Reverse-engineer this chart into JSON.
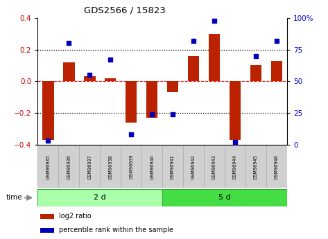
{
  "title": "GDS2566 / 15823",
  "samples": [
    "GSM96935",
    "GSM96936",
    "GSM96937",
    "GSM96938",
    "GSM96939",
    "GSM96940",
    "GSM96941",
    "GSM96942",
    "GSM96943",
    "GSM96944",
    "GSM96945",
    "GSM96946"
  ],
  "log2_ratio": [
    -0.37,
    0.12,
    0.03,
    0.02,
    -0.26,
    -0.23,
    -0.07,
    0.16,
    0.3,
    -0.37,
    0.1,
    0.13
  ],
  "percentile_rank": [
    3,
    80,
    55,
    67,
    8,
    24,
    24,
    82,
    98,
    2,
    70,
    82
  ],
  "groups": [
    {
      "label": "2 d",
      "start": 0,
      "end": 6,
      "color": "#AAFFAA"
    },
    {
      "label": "5 d",
      "start": 6,
      "end": 12,
      "color": "#44DD44"
    }
  ],
  "bar_color": "#BB2200",
  "dot_color": "#0000BB",
  "ylim": [
    -0.4,
    0.4
  ],
  "y2lim": [
    0,
    100
  ],
  "yticks": [
    -0.4,
    -0.2,
    0.0,
    0.2,
    0.4
  ],
  "y2ticks": [
    0,
    25,
    50,
    75,
    100
  ],
  "y2ticklabels": [
    "0",
    "25",
    "50",
    "75",
    "100%"
  ],
  "hline_dotted_vals": [
    0.2,
    -0.2
  ],
  "hline_dashed_val": 0.0,
  "legend_items": [
    {
      "label": "log2 ratio",
      "color": "#BB2200"
    },
    {
      "label": "percentile rank within the sample",
      "color": "#0000BB"
    }
  ],
  "bar_width": 0.55,
  "tick_label_color_left": "#CC0000",
  "tick_label_color_right": "#0000CC",
  "bg_color": "#FFFFFF",
  "sample_box_color": "#D0D0D0",
  "sample_box_edge": "#AAAAAA"
}
